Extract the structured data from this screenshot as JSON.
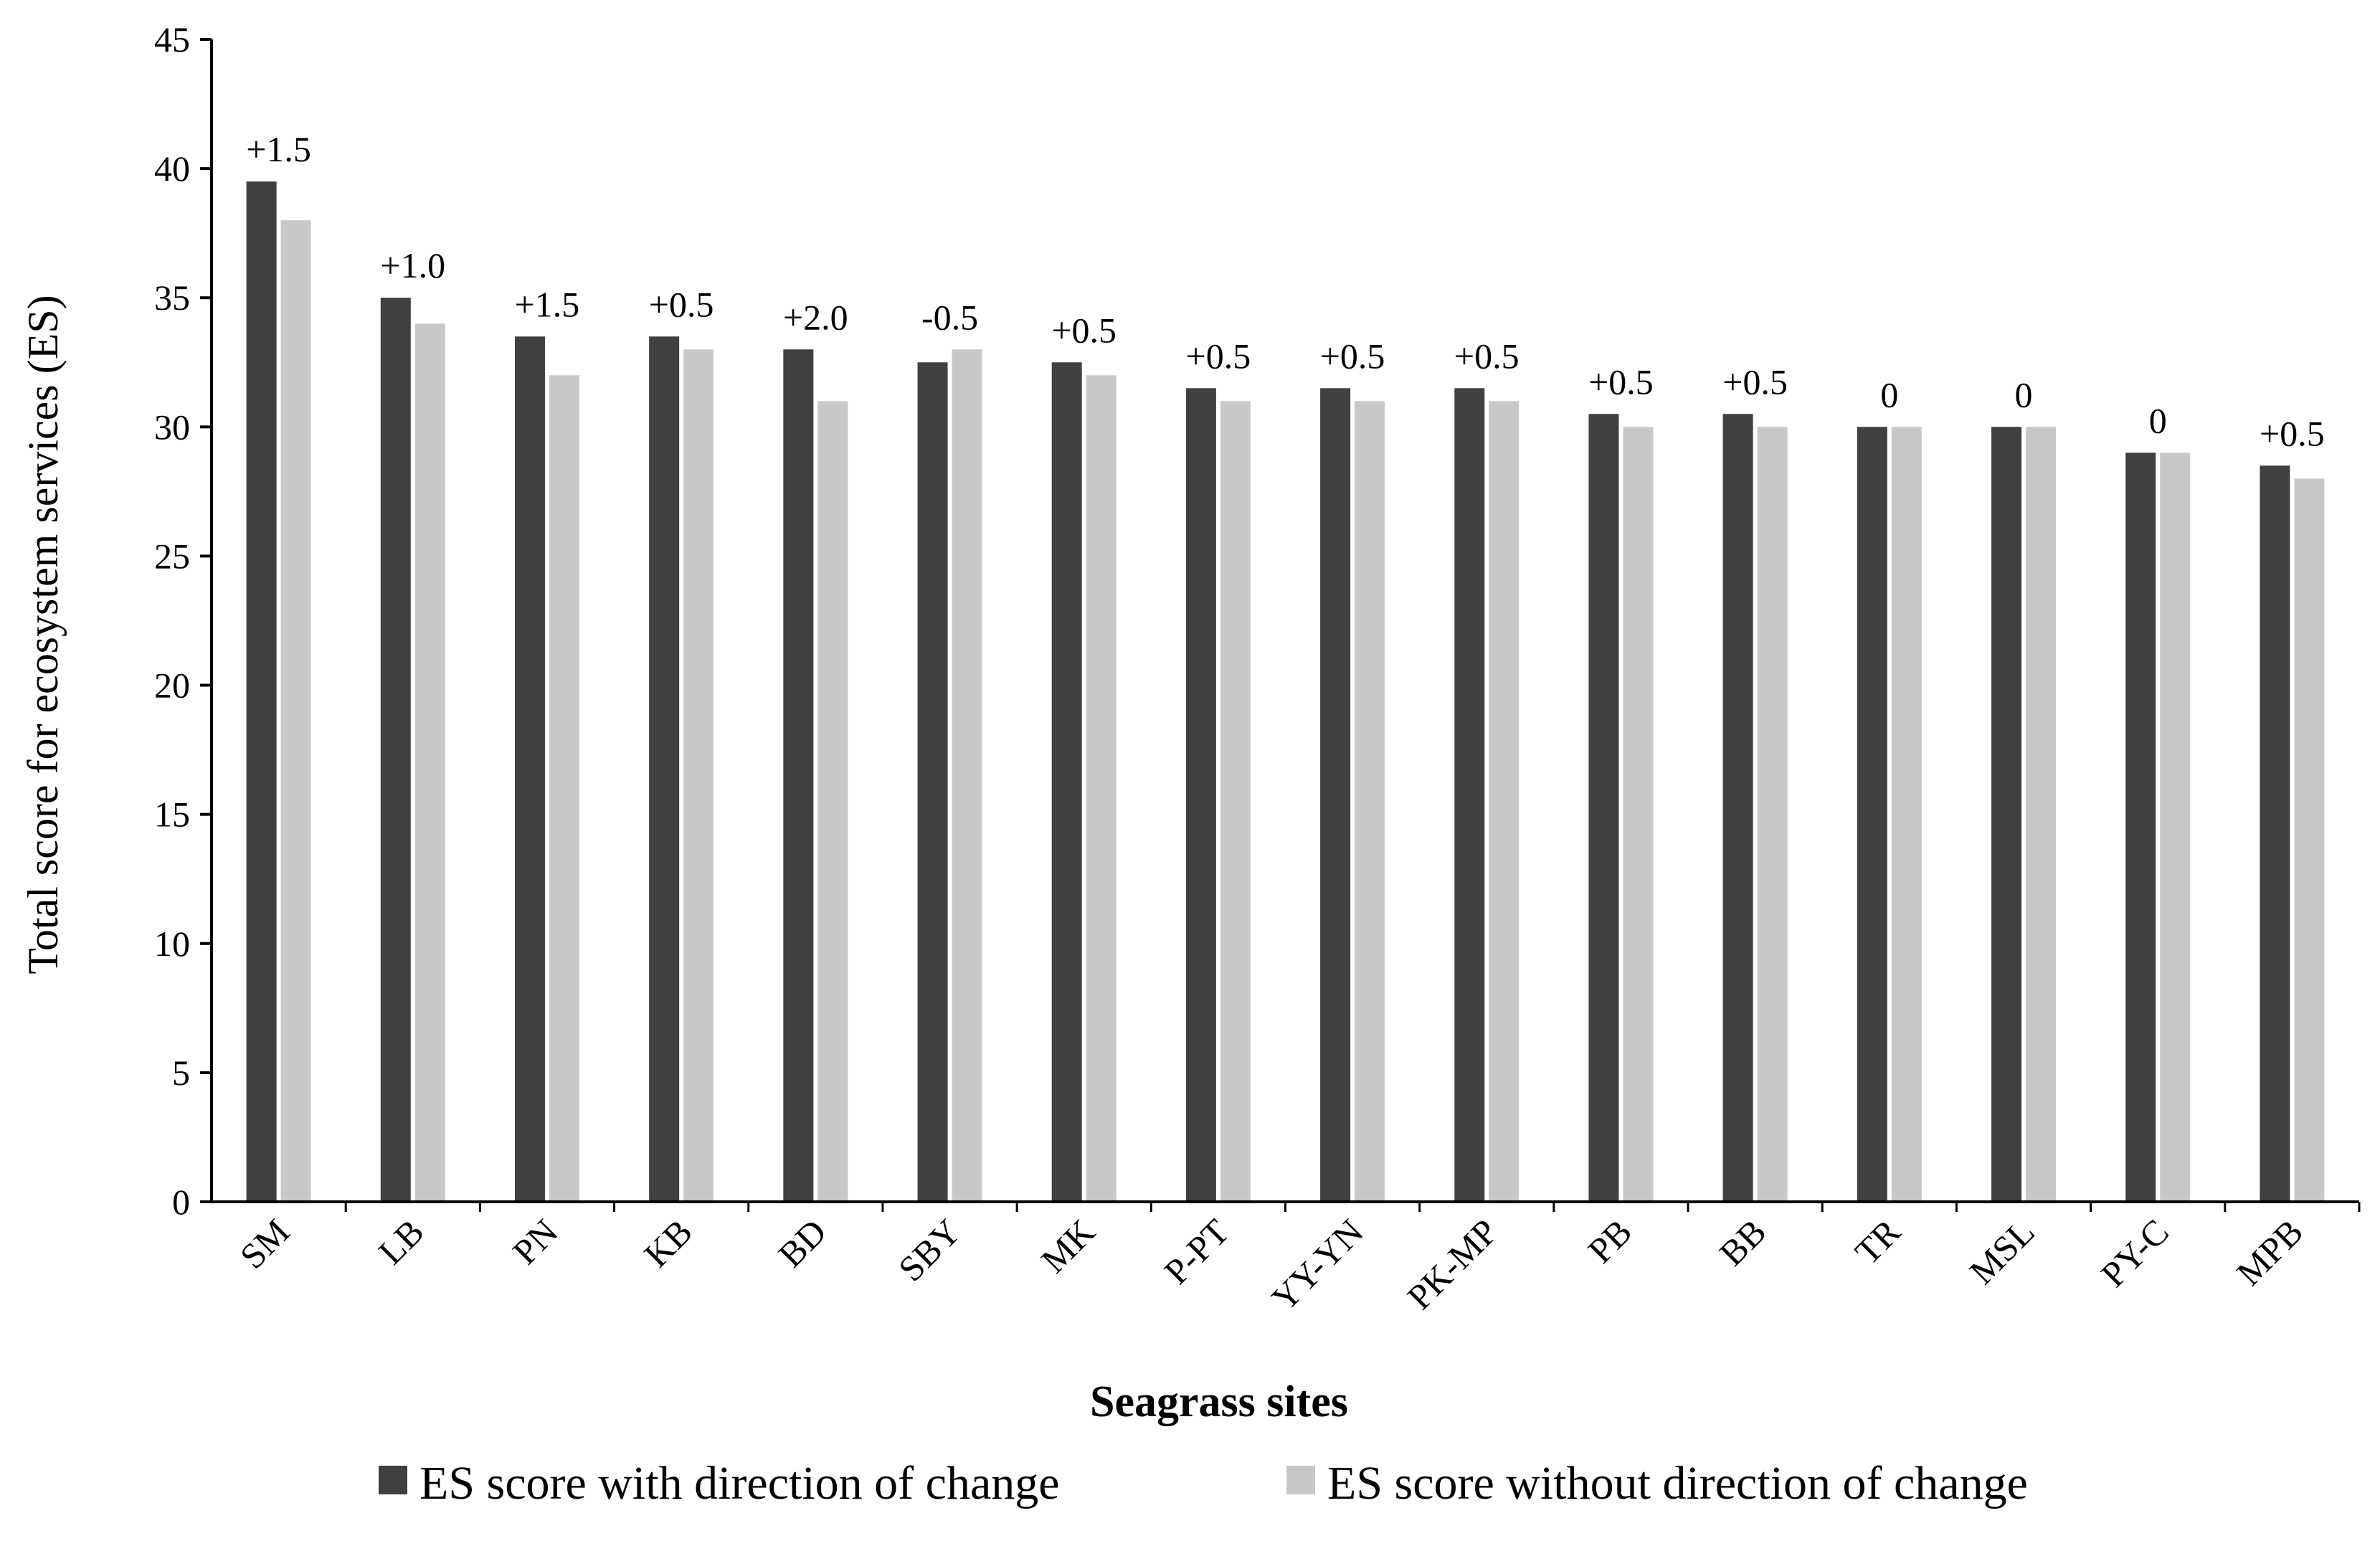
{
  "chart_data": {
    "type": "bar",
    "title": "",
    "xlabel": "Seagrass sites",
    "ylabel": "Total score for ecosystem services (ES)",
    "ylim": [
      0,
      45
    ],
    "yticks": [
      0,
      5,
      10,
      15,
      20,
      25,
      30,
      35,
      40,
      45
    ],
    "grid": false,
    "legend_position": "bottom",
    "categories": [
      "SM",
      "LB",
      "PN",
      "KB",
      "BD",
      "SBY",
      "MK",
      "P-PT",
      "YY-YN",
      "PK-MP",
      "PB",
      "BB",
      "TR",
      "MSL",
      "PY-C",
      "MPB"
    ],
    "series": [
      {
        "name": "ES score with direction of change",
        "color": "#404040",
        "values": [
          39.5,
          35.0,
          33.5,
          33.5,
          33.0,
          32.5,
          32.5,
          31.5,
          31.5,
          31.5,
          30.5,
          30.5,
          30.0,
          30.0,
          29.0,
          28.5
        ]
      },
      {
        "name": "ES score without direction of change",
        "color": "#c8c8c8",
        "values": [
          38.0,
          34.0,
          32.0,
          33.0,
          31.0,
          33.0,
          32.0,
          31.0,
          31.0,
          31.0,
          30.0,
          30.0,
          30.0,
          30.0,
          29.0,
          28.0
        ]
      }
    ],
    "annotations": [
      "+1.5",
      "+1.0",
      "+1.5",
      "+0.5",
      "+2.0",
      "-0.5",
      "+0.5",
      "+0.5",
      "+0.5",
      "+0.5",
      "+0.5",
      "+0.5",
      "0",
      "0",
      "0",
      "+0.5"
    ]
  }
}
